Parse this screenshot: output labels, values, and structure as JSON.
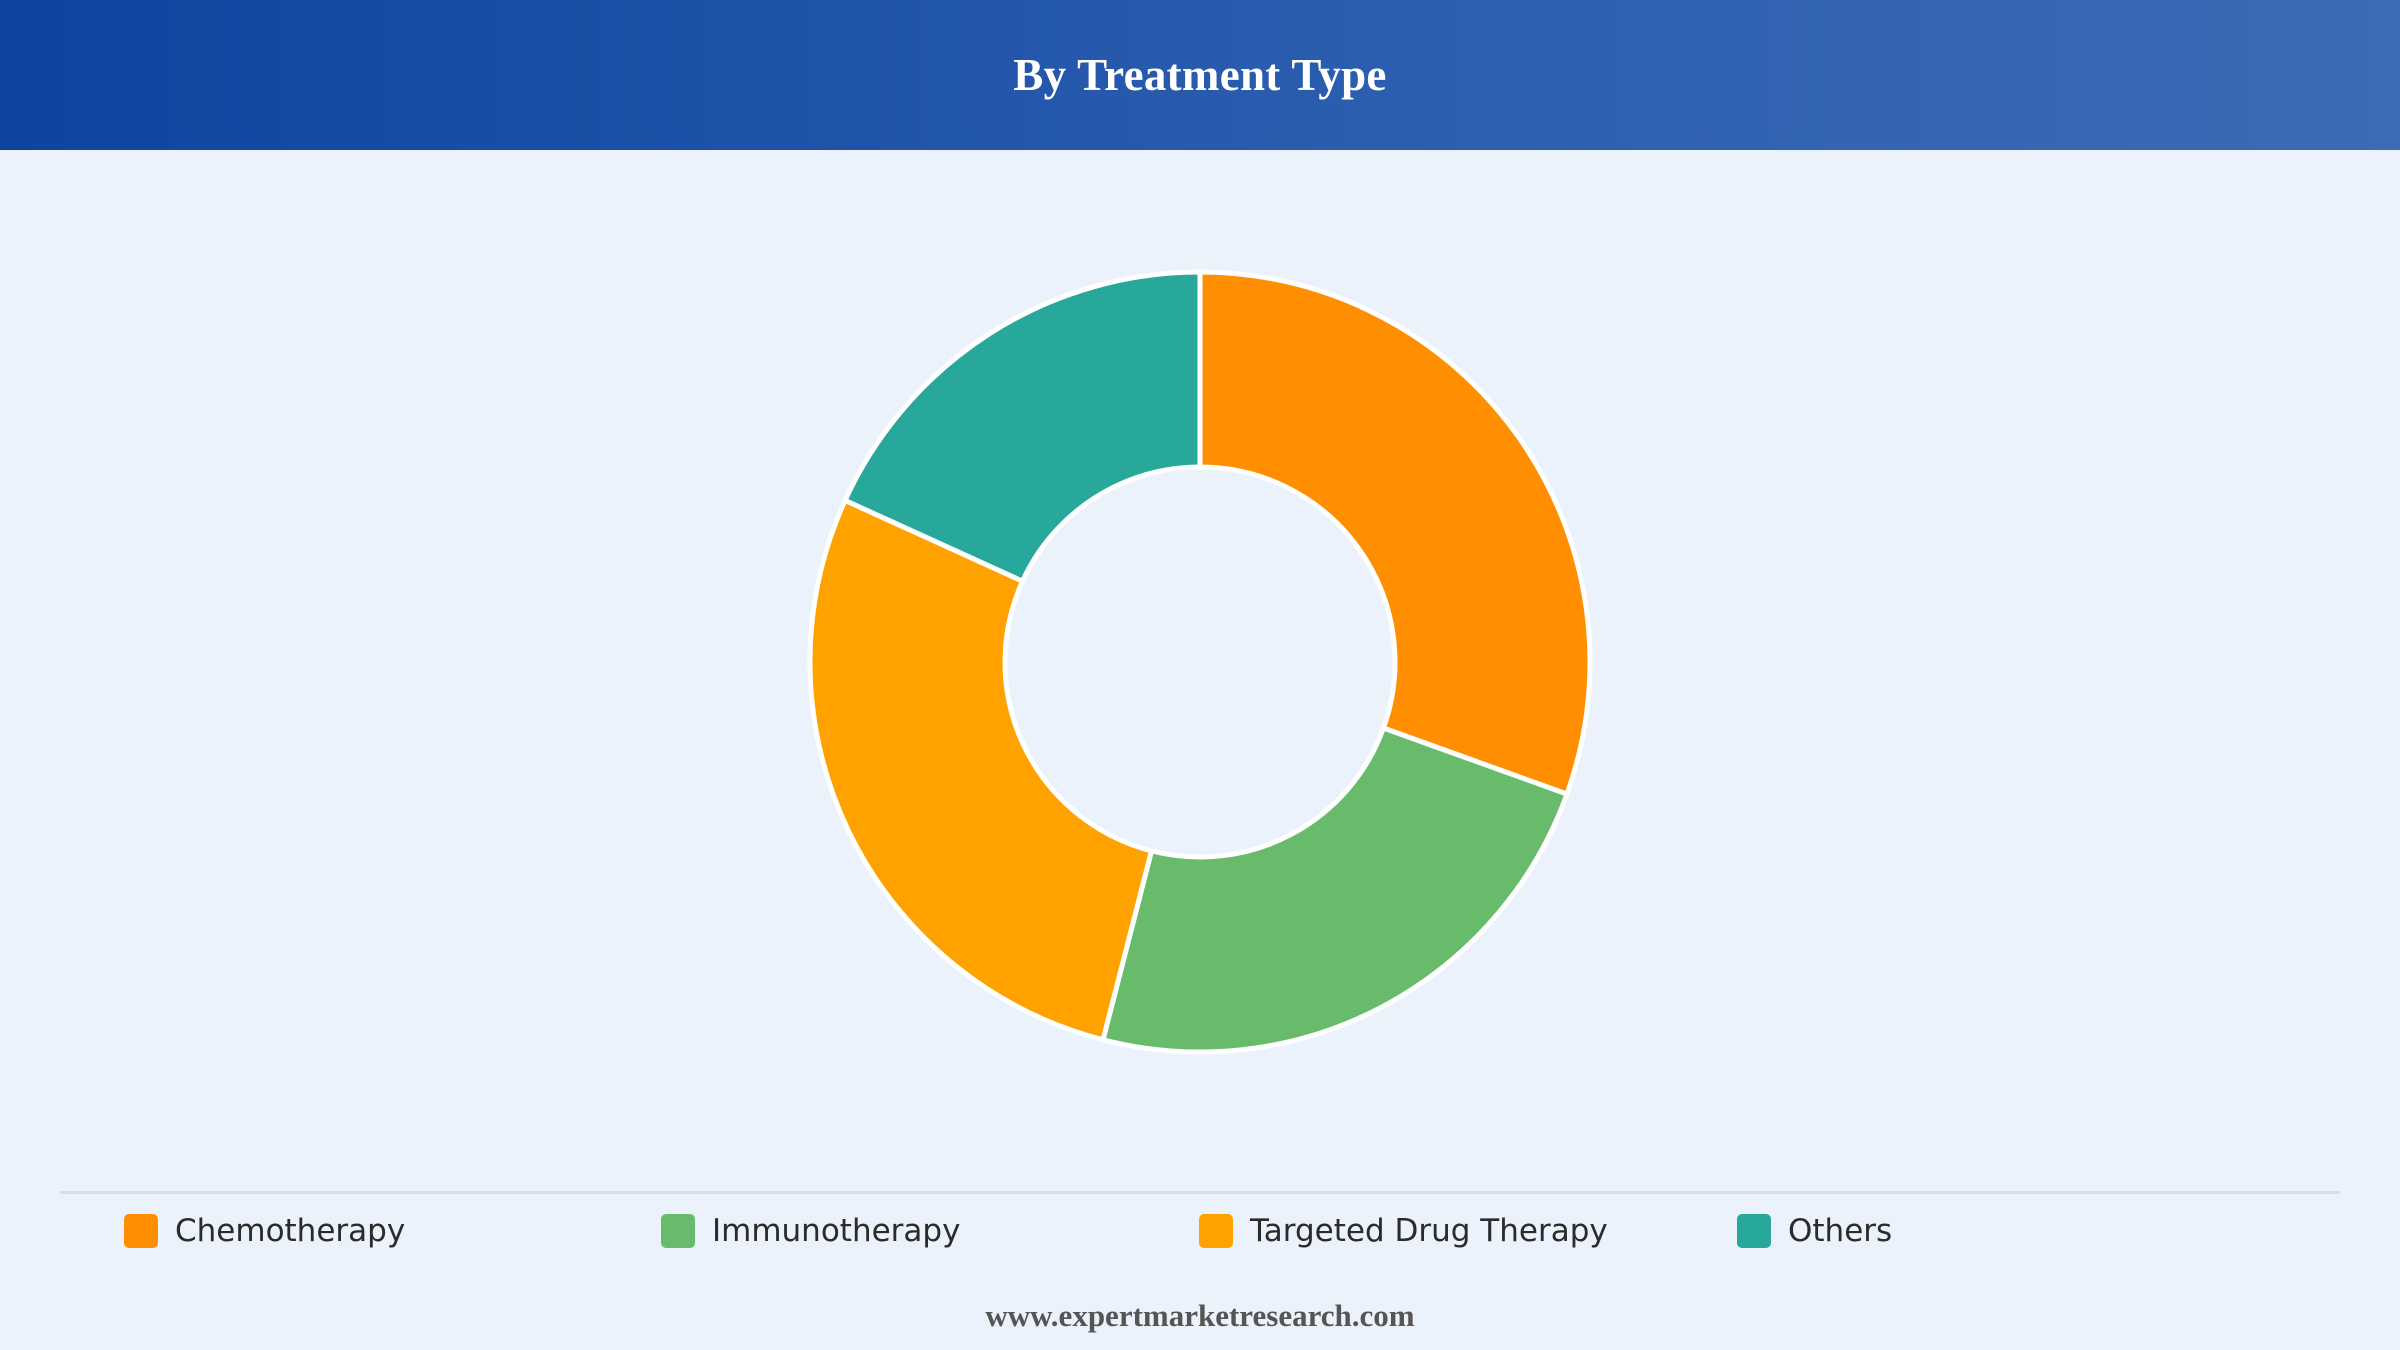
{
  "header": {
    "title": "By Treatment Type"
  },
  "chart_data": {
    "type": "pie",
    "variant": "donut",
    "title": "By Treatment Type",
    "categories": [
      "Chemotherapy",
      "Immunotherapy",
      "Targeted Drug Therapy",
      "Others"
    ],
    "values": [
      30.5,
      23.5,
      27.8,
      18.2
    ],
    "colors": [
      "#ff8f00",
      "#68bb6b",
      "#ffa200",
      "#27a89a"
    ],
    "legend_position": "bottom"
  },
  "legend": {
    "items": [
      {
        "label": "Chemotherapy",
        "color": "#ff8f00"
      },
      {
        "label": "Immunotherapy",
        "color": "#68bb6b"
      },
      {
        "label": "Targeted Drug Therapy",
        "color": "#ffa200"
      },
      {
        "label": "Others",
        "color": "#27a89a"
      }
    ]
  },
  "footer": {
    "url": "www.expertmarketresearch.com"
  }
}
